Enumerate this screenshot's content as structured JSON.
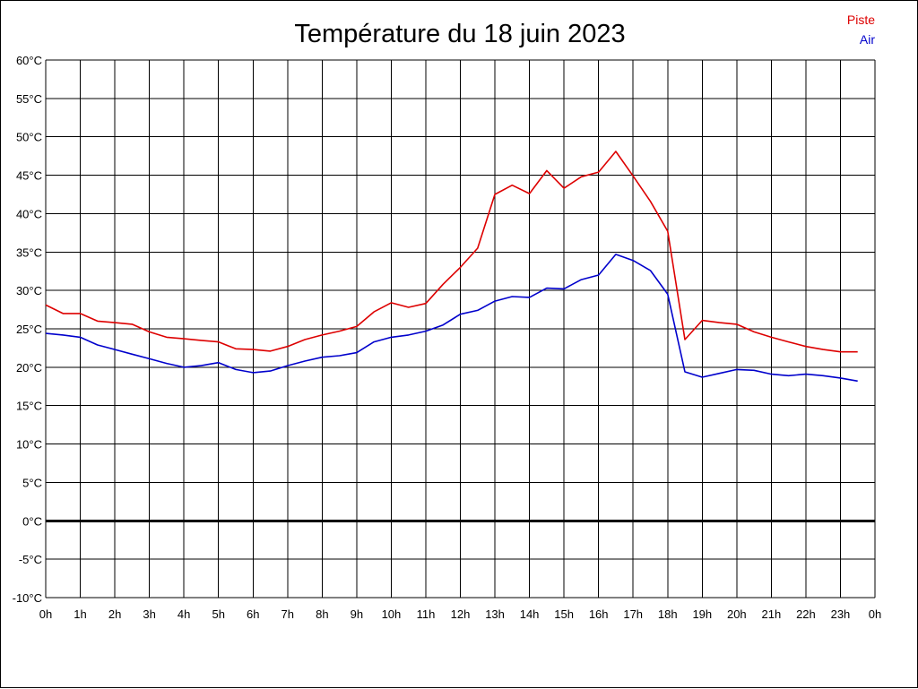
{
  "chart_data": {
    "type": "line",
    "title": "Température du 18 juin 2023",
    "xlabel": "",
    "ylabel": "",
    "ylim": [
      -10,
      60
    ],
    "xlim": [
      0,
      24
    ],
    "grid": true,
    "legend_position": "top-right",
    "x_tick_labels": [
      "0h",
      "1h",
      "2h",
      "3h",
      "4h",
      "5h",
      "6h",
      "7h",
      "8h",
      "9h",
      "10h",
      "11h",
      "12h",
      "13h",
      "14h",
      "15h",
      "16h",
      "17h",
      "18h",
      "19h",
      "20h",
      "21h",
      "22h",
      "23h",
      "0h"
    ],
    "y_tick_labels": [
      "60°C",
      "55°C",
      "50°C",
      "45°C",
      "40°C",
      "35°C",
      "30°C",
      "25°C",
      "20°C",
      "15°C",
      "10°C",
      "5°C",
      "0°C",
      "-5°C",
      "-10°C"
    ],
    "y_tick_values": [
      60,
      55,
      50,
      45,
      40,
      35,
      30,
      25,
      20,
      15,
      10,
      5,
      0,
      -5,
      -10
    ],
    "x": [
      0,
      0.5,
      1,
      1.5,
      2,
      2.5,
      3,
      3.5,
      4,
      4.5,
      5,
      5.5,
      6,
      6.5,
      7,
      7.5,
      8,
      8.5,
      9,
      9.5,
      10,
      10.5,
      11,
      11.5,
      12,
      12.5,
      13,
      13.5,
      14,
      14.5,
      15,
      15.5,
      16,
      16.5,
      17,
      17.5,
      18,
      18.5,
      19,
      19.5,
      20,
      20.5,
      21,
      21.5,
      22,
      22.5,
      23,
      23.5
    ],
    "series": [
      {
        "name": "Piste",
        "color": "#dd0000",
        "values": [
          28.1,
          27.0,
          27.0,
          26.0,
          25.8,
          25.6,
          24.6,
          23.9,
          23.7,
          23.5,
          23.3,
          22.4,
          22.3,
          22.1,
          22.7,
          23.6,
          24.2,
          24.7,
          25.3,
          27.2,
          28.4,
          27.8,
          28.3,
          30.8,
          33.0,
          35.5,
          42.5,
          43.7,
          42.6,
          45.6,
          43.3,
          44.8,
          45.4,
          48.1,
          44.9,
          41.6,
          37.7,
          23.6,
          26.1,
          25.8,
          25.6,
          24.6,
          23.9,
          23.3,
          22.7,
          22.3,
          22.0,
          22.0
        ]
      },
      {
        "name": "Air",
        "color": "#0000cc",
        "values": [
          24.4,
          24.2,
          23.9,
          22.9,
          22.3,
          21.7,
          21.1,
          20.5,
          20.0,
          20.2,
          20.6,
          19.7,
          19.3,
          19.5,
          20.2,
          20.8,
          21.3,
          21.5,
          21.9,
          23.3,
          23.9,
          24.2,
          24.7,
          25.5,
          26.9,
          27.4,
          28.6,
          29.2,
          29.1,
          30.3,
          30.2,
          31.4,
          32.0,
          34.7,
          33.9,
          32.6,
          29.5,
          19.4,
          18.7,
          19.2,
          19.7,
          19.6,
          19.1,
          18.9,
          19.1,
          18.9,
          18.6,
          18.2
        ]
      }
    ]
  }
}
